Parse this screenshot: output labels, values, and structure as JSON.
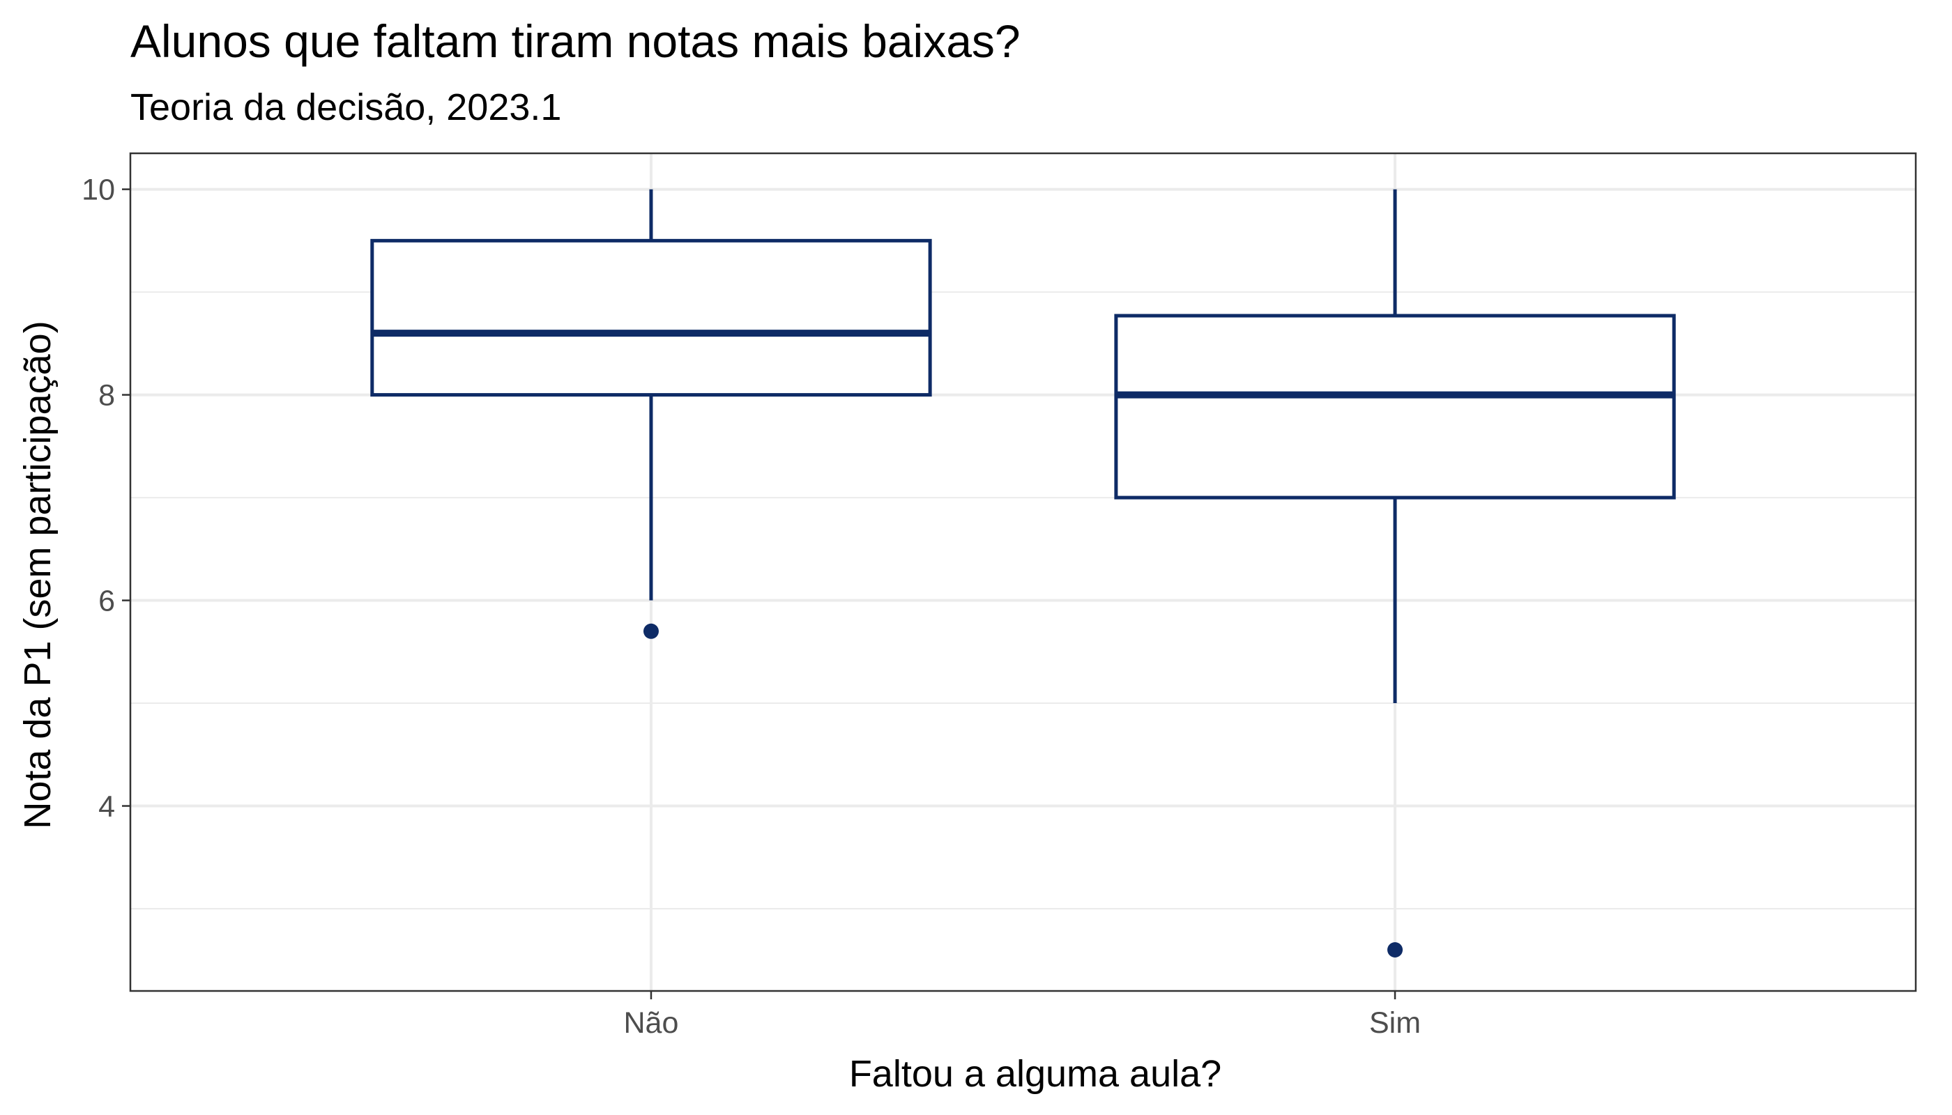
{
  "chart_data": {
    "type": "boxplot",
    "title": "Alunos que faltam tiram notas mais baixas?",
    "subtitle": "Teoria da decisão, 2023.1",
    "xlabel": "Faltou a alguma aula?",
    "ylabel": "Nota da P1 (sem participação)",
    "categories": [
      "Não",
      "Sim"
    ],
    "ylim": [
      2.2,
      10.35
    ],
    "yticks": [
      4,
      6,
      8,
      10
    ],
    "yticks_minor": [
      3,
      5,
      7,
      9
    ],
    "grid": true,
    "boxes": [
      {
        "category": "Não",
        "whisker_low": 6.0,
        "q1": 8.0,
        "median": 8.6,
        "q3": 9.5,
        "whisker_high": 10.0,
        "outliers": [
          5.7
        ]
      },
      {
        "category": "Sim",
        "whisker_low": 5.0,
        "q1": 7.0,
        "median": 8.0,
        "q3": 8.77,
        "whisker_high": 10.0,
        "outliers": [
          2.6
        ]
      }
    ],
    "colors": {
      "box": "#0e2b66",
      "grid": "#ebebeb",
      "panel_border": "#333333"
    }
  }
}
